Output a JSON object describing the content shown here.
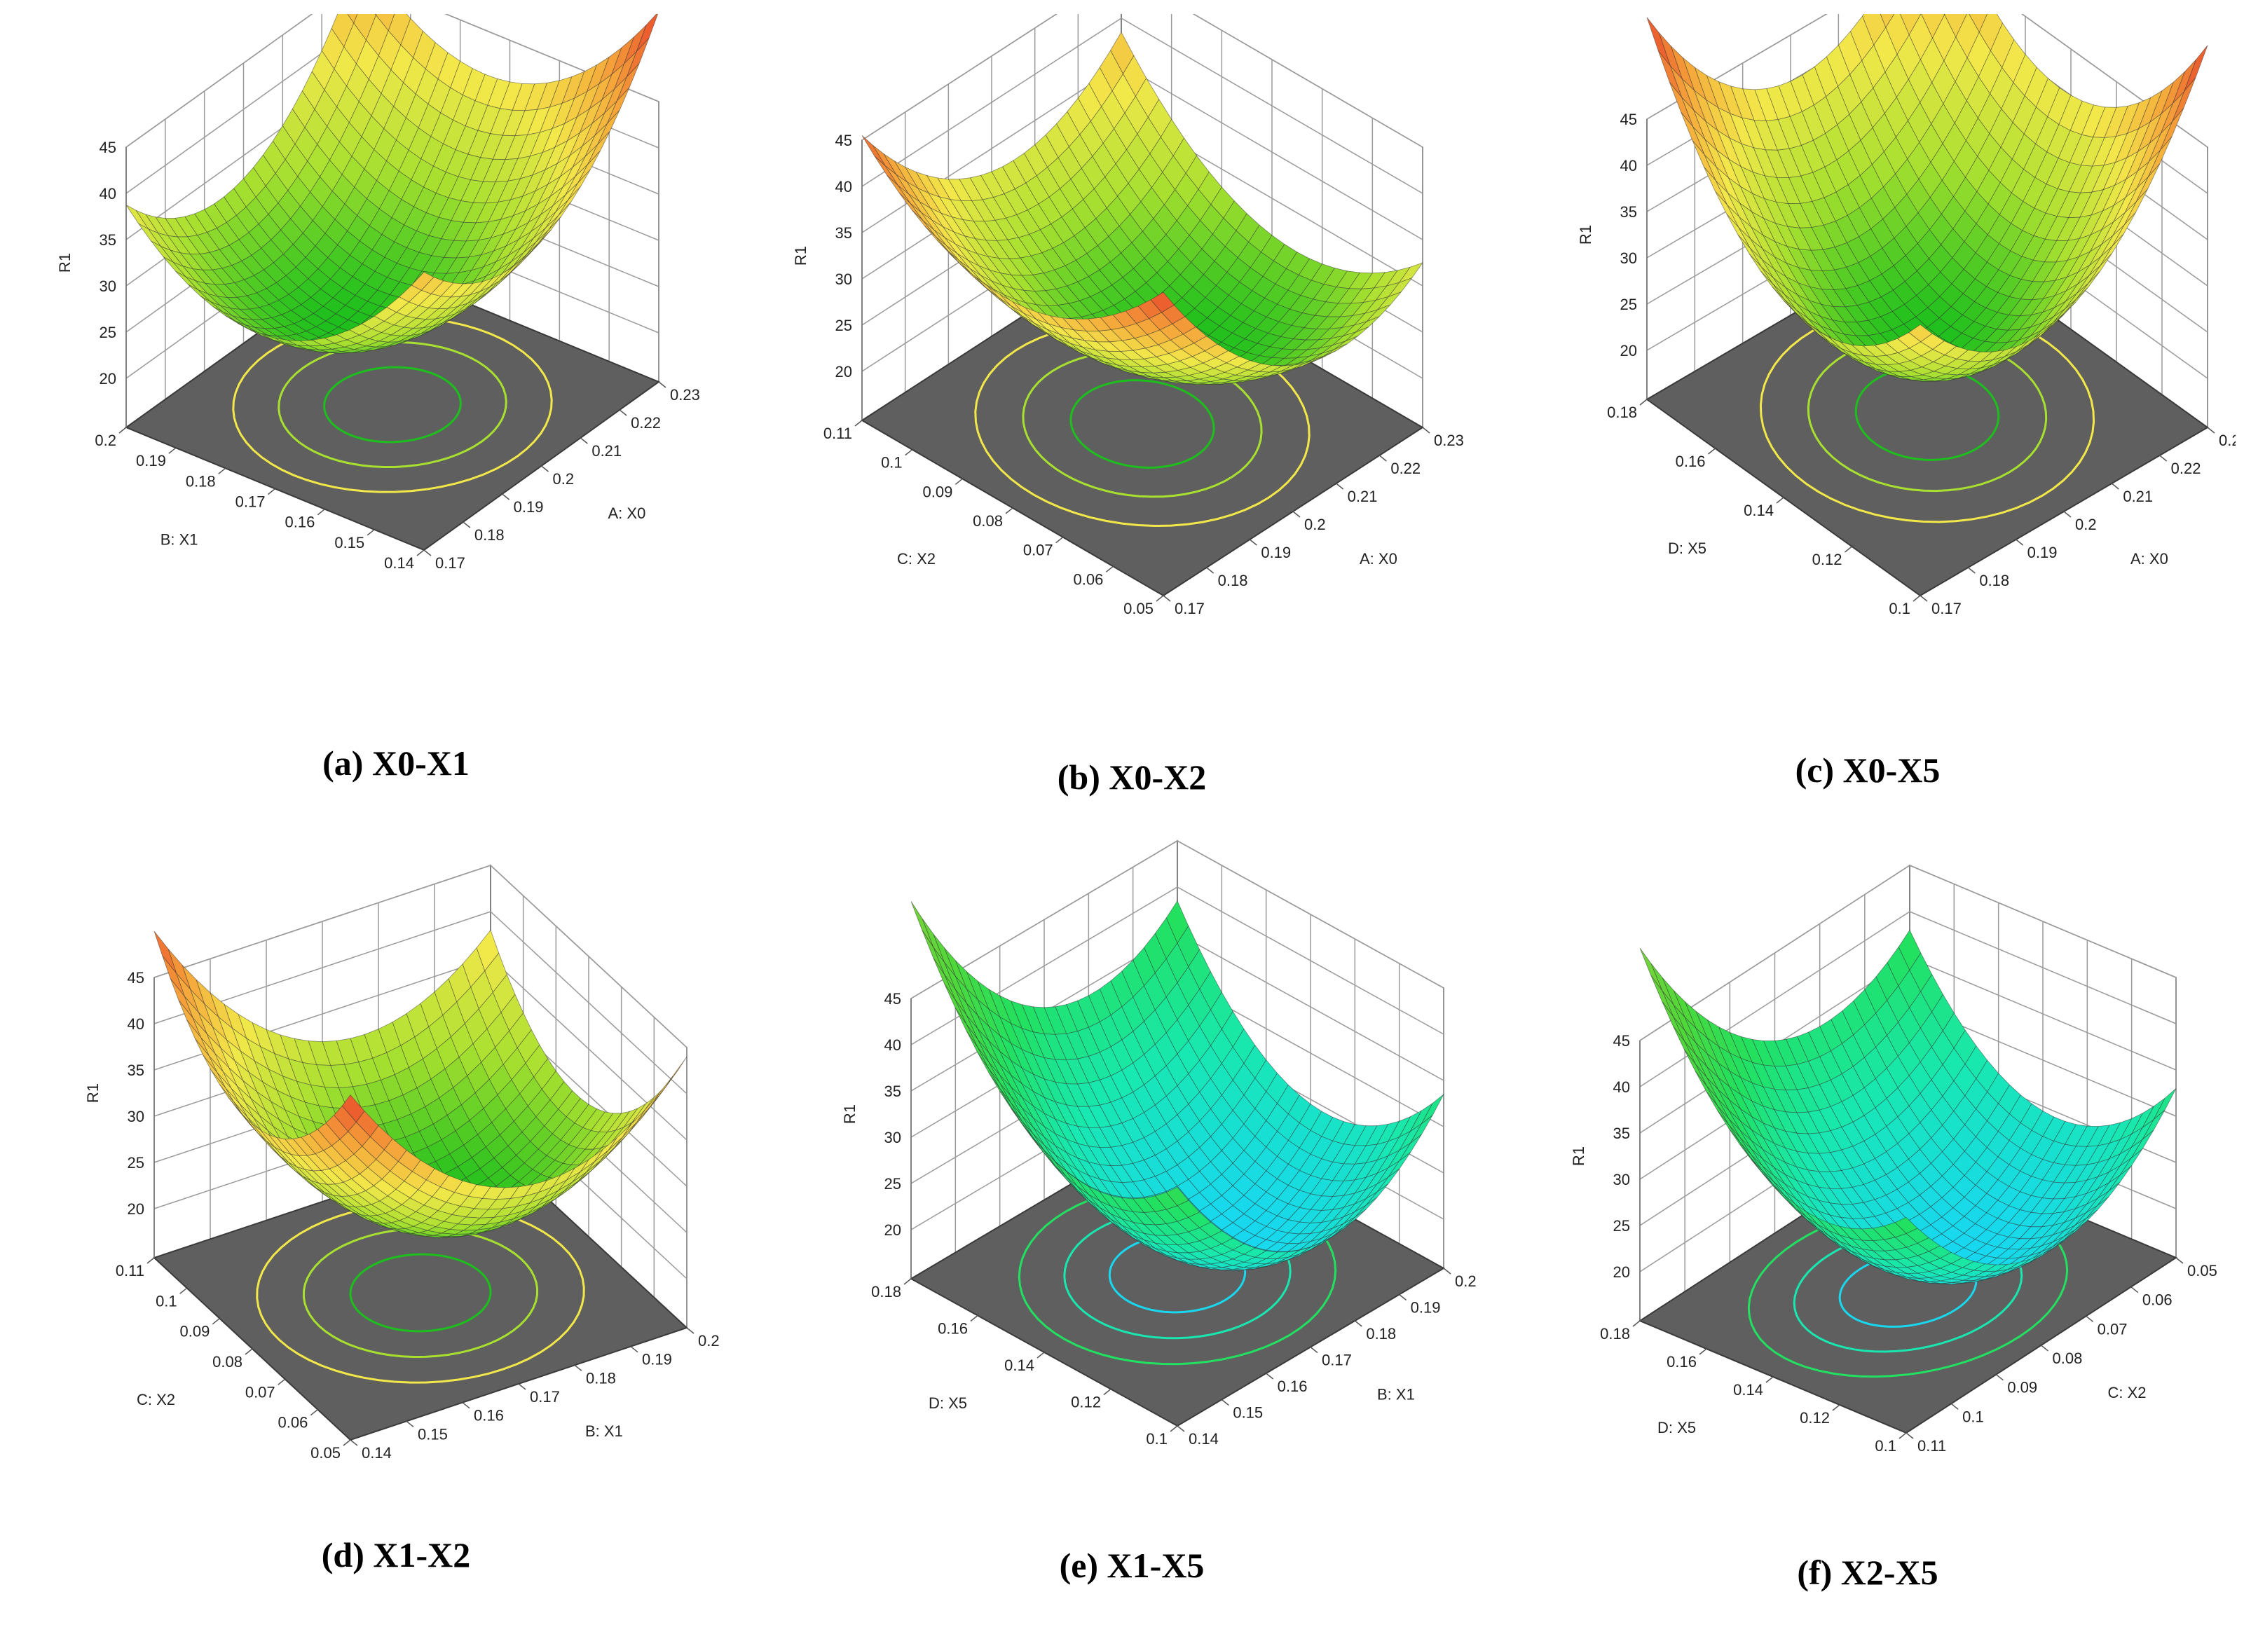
{
  "figure": {
    "zlabel": "R1",
    "z_ticks": [
      "20",
      "25",
      "30",
      "35",
      "40",
      "45"
    ]
  },
  "chart_data": [
    {
      "id": "a",
      "type": "surface",
      "title": "(a) X0-X1",
      "xlabel": "A: X0",
      "ylabel": "B: X1",
      "zlabel": "R1",
      "x_ticks": [
        "0.17",
        "0.18",
        "0.19",
        "0.2",
        "0.21",
        "0.22",
        "0.23"
      ],
      "y_ticks": [
        "0.14",
        "0.15",
        "0.16",
        "0.17",
        "0.18",
        "0.19",
        "0.2"
      ],
      "zlim": [
        20,
        45
      ],
      "corner_values": {
        "x0_y0": 34,
        "x1_y0": 44,
        "x0_y1": 28,
        "x1_y1": 37
      },
      "min_value": 25,
      "colors": [
        "#1dbf1d",
        "#a8e030",
        "#f3e84a",
        "#f5a33a",
        "#e8442a"
      ]
    },
    {
      "id": "b",
      "type": "surface",
      "title": "(b) X0-X2",
      "xlabel": "A: X0",
      "ylabel": "C: X2",
      "zlabel": "R1",
      "x_ticks": [
        "0.17",
        "0.18",
        "0.19",
        "0.2",
        "0.21",
        "0.22",
        "0.23"
      ],
      "y_ticks": [
        "0.05",
        "0.06",
        "0.07",
        "0.08",
        "0.09",
        "0.1",
        "0.11"
      ],
      "zlim": [
        20,
        45
      ],
      "corner_values": {
        "x0_y0": 38,
        "x1_y0": 23,
        "x0_y1": 36,
        "x1_y1": 29
      },
      "min_value": 22,
      "colors": [
        "#1dbf1d",
        "#a8e030",
        "#f3e84a",
        "#f5a33a",
        "#e8442a"
      ]
    },
    {
      "id": "c",
      "type": "surface",
      "title": "(c) X0-X5",
      "xlabel": "A: X0",
      "ylabel": "D: X5",
      "zlabel": "R1",
      "x_ticks": [
        "0.17",
        "0.18",
        "0.19",
        "0.2",
        "0.21",
        "0.22",
        "0.23"
      ],
      "y_ticks": [
        "0.1",
        "0.12",
        "0.14",
        "0.16",
        "0.18"
      ],
      "zlim": [
        20,
        45
      ],
      "corner_values": {
        "x0_y0": 30,
        "x1_y0": 42,
        "x0_y1": 42,
        "x1_y1": 38
      },
      "min_value": 24,
      "colors": [
        "#1dbf1d",
        "#a8e030",
        "#f3e84a",
        "#f5a33a",
        "#e8442a"
      ]
    },
    {
      "id": "d",
      "type": "surface",
      "title": "(d) X1-X2",
      "xlabel": "B: X1",
      "ylabel": "C: X2",
      "zlabel": "R1",
      "x_ticks": [
        "0.14",
        "0.15",
        "0.16",
        "0.17",
        "0.18",
        "0.19",
        "0.2"
      ],
      "y_ticks": [
        "0.05",
        "0.06",
        "0.07",
        "0.08",
        "0.09",
        "0.1",
        "0.11"
      ],
      "zlim": [
        20,
        45
      ],
      "corner_values": {
        "x0_y0": 40,
        "x1_y0": 32,
        "x0_y1": 38,
        "x1_y1": 26
      },
      "min_value": 22,
      "colors": [
        "#1dbf1d",
        "#a8e030",
        "#f3e84a",
        "#f5a33a",
        "#e8442a"
      ]
    },
    {
      "id": "e",
      "type": "surface",
      "title": "(e) X1-X5",
      "xlabel": "B: X1",
      "ylabel": "D: X5",
      "zlabel": "R1",
      "x_ticks": [
        "0.14",
        "0.15",
        "0.16",
        "0.17",
        "0.18",
        "0.19",
        "0.2"
      ],
      "y_ticks": [
        "0.1",
        "0.12",
        "0.14",
        "0.16",
        "0.18"
      ],
      "zlim": [
        20,
        45
      ],
      "corner_values": {
        "x0_y0": 29,
        "x1_y0": 22,
        "x0_y1": 44,
        "x1_y1": 27
      },
      "min_value": 19,
      "colors": [
        "#18d8f0",
        "#18e8b0",
        "#22e060",
        "#4ed83a",
        "#7ad23a"
      ]
    },
    {
      "id": "f",
      "type": "surface",
      "title": "(f) X2-X5",
      "xlabel": "C: X2",
      "ylabel": "D: X5",
      "zlabel": "R1",
      "x_ticks": [
        "0.11",
        "0.1",
        "0.09",
        "0.08",
        "0.07",
        "0.06",
        "0.05"
      ],
      "y_ticks": [
        "0.1",
        "0.12",
        "0.14",
        "0.16",
        "0.18"
      ],
      "zlim": [
        20,
        45
      ],
      "corner_values": {
        "x0_y0": 27,
        "x1_y0": 22,
        "x0_y1": 44,
        "x1_y1": 27
      },
      "min_value": 19,
      "colors": [
        "#18d8f0",
        "#18e8b0",
        "#22e060",
        "#4ed83a",
        "#7ad23a"
      ]
    }
  ]
}
